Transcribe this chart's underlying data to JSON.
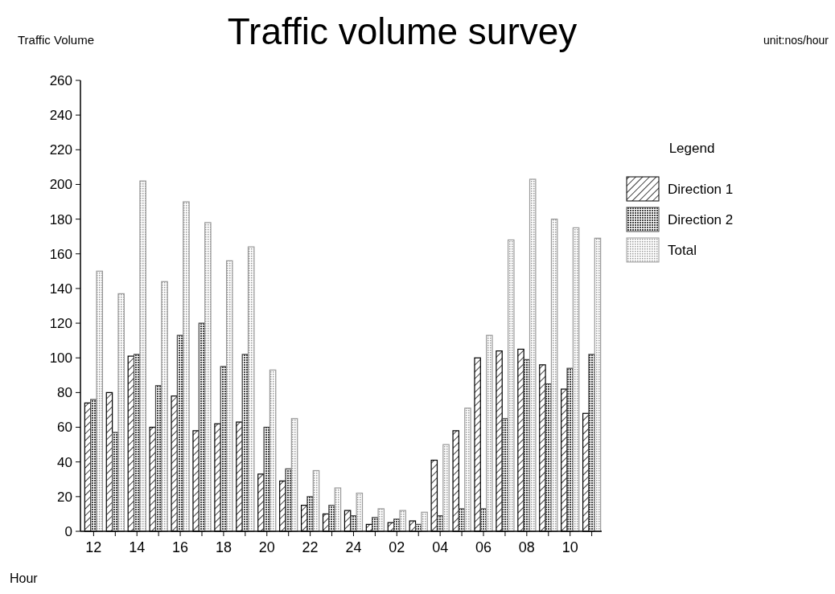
{
  "chart_data": {
    "type": "bar",
    "title": "Traffic volume survey",
    "ylabel": "Traffic Volume",
    "xlabel": "Hour",
    "annotations": [
      "unit:nos/hour"
    ],
    "legend_title": "Legend",
    "legend": "right",
    "categories": [
      "12",
      null,
      "14",
      null,
      "16",
      null,
      "18",
      null,
      "20",
      null,
      "22",
      null,
      "24",
      null,
      "02",
      null,
      "04",
      null,
      "06",
      null,
      "08",
      null,
      "10",
      null
    ],
    "series": [
      {
        "name": "Direction 1",
        "color": "#000000",
        "values": [
          74,
          80,
          101,
          60,
          78,
          58,
          62,
          63,
          33,
          29,
          15,
          10,
          12,
          4,
          5,
          6,
          41,
          58,
          100,
          104,
          105,
          96,
          82,
          68
        ]
      },
      {
        "name": "Direction 2",
        "color": "#444444",
        "values": [
          76,
          57,
          102,
          84,
          113,
          120,
          95,
          102,
          60,
          36,
          20,
          15,
          9,
          8,
          7,
          4,
          9,
          13,
          13,
          65,
          99,
          85,
          94,
          102
        ]
      },
      {
        "name": "Total",
        "color": "#999999",
        "values": [
          150,
          137,
          202,
          144,
          190,
          178,
          156,
          164,
          93,
          65,
          35,
          25,
          22,
          13,
          12,
          11,
          50,
          71,
          113,
          168,
          203,
          180,
          175,
          169
        ]
      }
    ],
    "ylim": [
      0,
      260
    ],
    "yticks": [
      0,
      20,
      40,
      60,
      80,
      100,
      120,
      140,
      160,
      180,
      200,
      220,
      240,
      260
    ],
    "grid": false
  }
}
